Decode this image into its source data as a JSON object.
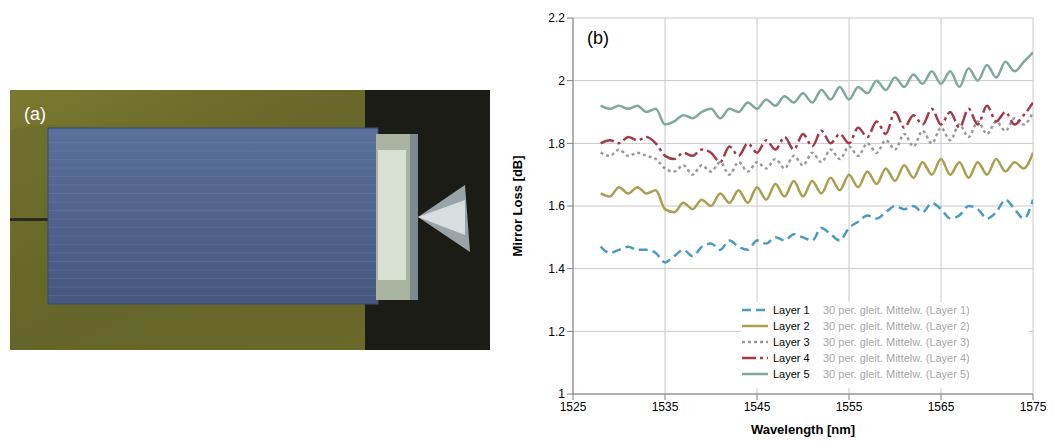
{
  "image": {
    "panel": "(a)"
  },
  "chart_data": {
    "panel": "(b)",
    "type": "line",
    "x_label": "Wavelength [nm]",
    "y_label": "Mirror Loss [dB]",
    "x": [
      1528,
      1529,
      1530,
      1531,
      1532,
      1533,
      1534,
      1535,
      1536,
      1537,
      1538,
      1539,
      1540,
      1541,
      1542,
      1543,
      1544,
      1545,
      1546,
      1547,
      1548,
      1549,
      1550,
      1551,
      1552,
      1553,
      1554,
      1555,
      1556,
      1557,
      1558,
      1559,
      1560,
      1561,
      1562,
      1563,
      1564,
      1565,
      1566,
      1567,
      1568,
      1569,
      1570,
      1571,
      1572,
      1573,
      1574,
      1575
    ],
    "series": [
      {
        "name": "Layer 1",
        "color": "#4a9bbf",
        "line_style": "dashed",
        "values": [
          1.47,
          1.45,
          1.46,
          1.47,
          1.46,
          1.46,
          1.45,
          1.42,
          1.44,
          1.46,
          1.44,
          1.47,
          1.48,
          1.46,
          1.49,
          1.47,
          1.46,
          1.49,
          1.48,
          1.5,
          1.49,
          1.51,
          1.5,
          1.49,
          1.53,
          1.51,
          1.49,
          1.53,
          1.55,
          1.57,
          1.56,
          1.58,
          1.6,
          1.59,
          1.6,
          1.58,
          1.61,
          1.59,
          1.56,
          1.57,
          1.6,
          1.59,
          1.56,
          1.58,
          1.62,
          1.59,
          1.56,
          1.62
        ]
      },
      {
        "name": "Layer 2",
        "color": "#a8a04f",
        "line_style": "solid",
        "values": [
          1.64,
          1.63,
          1.66,
          1.64,
          1.66,
          1.64,
          1.65,
          1.59,
          1.58,
          1.61,
          1.59,
          1.62,
          1.6,
          1.64,
          1.61,
          1.65,
          1.61,
          1.66,
          1.62,
          1.67,
          1.63,
          1.68,
          1.63,
          1.68,
          1.64,
          1.69,
          1.65,
          1.7,
          1.66,
          1.71,
          1.67,
          1.72,
          1.68,
          1.73,
          1.69,
          1.74,
          1.7,
          1.75,
          1.7,
          1.74,
          1.69,
          1.74,
          1.7,
          1.75,
          1.71,
          1.74,
          1.72,
          1.77
        ]
      },
      {
        "name": "Layer 3",
        "color": "#9a9a9a",
        "line_style": "dotted",
        "values": [
          1.77,
          1.76,
          1.78,
          1.76,
          1.77,
          1.76,
          1.75,
          1.72,
          1.71,
          1.73,
          1.7,
          1.73,
          1.71,
          1.74,
          1.7,
          1.74,
          1.71,
          1.74,
          1.72,
          1.75,
          1.72,
          1.76,
          1.73,
          1.77,
          1.74,
          1.78,
          1.75,
          1.79,
          1.76,
          1.8,
          1.77,
          1.81,
          1.78,
          1.83,
          1.79,
          1.84,
          1.8,
          1.85,
          1.81,
          1.86,
          1.82,
          1.87,
          1.83,
          1.87,
          1.84,
          1.88,
          1.86,
          1.9
        ]
      },
      {
        "name": "Layer 4",
        "color": "#a33a4a",
        "line_style": "dashdot",
        "values": [
          1.8,
          1.81,
          1.8,
          1.82,
          1.81,
          1.82,
          1.8,
          1.76,
          1.75,
          1.77,
          1.76,
          1.78,
          1.77,
          1.74,
          1.79,
          1.76,
          1.8,
          1.77,
          1.81,
          1.78,
          1.82,
          1.78,
          1.83,
          1.79,
          1.84,
          1.8,
          1.83,
          1.8,
          1.85,
          1.82,
          1.87,
          1.83,
          1.9,
          1.85,
          1.89,
          1.86,
          1.91,
          1.86,
          1.9,
          1.85,
          1.91,
          1.86,
          1.92,
          1.87,
          1.9,
          1.86,
          1.89,
          1.93
        ]
      },
      {
        "name": "Layer 5",
        "color": "#7fa99a",
        "line_style": "solid",
        "values": [
          1.92,
          1.91,
          1.92,
          1.91,
          1.92,
          1.9,
          1.91,
          1.86,
          1.87,
          1.89,
          1.88,
          1.9,
          1.91,
          1.88,
          1.91,
          1.9,
          1.93,
          1.91,
          1.94,
          1.92,
          1.95,
          1.93,
          1.96,
          1.93,
          1.97,
          1.94,
          1.98,
          1.94,
          1.98,
          1.96,
          2.0,
          1.97,
          2.01,
          1.98,
          2.02,
          1.99,
          2.03,
          1.99,
          2.03,
          1.98,
          2.04,
          2.0,
          2.05,
          2.01,
          2.06,
          2.03,
          2.06,
          2.09
        ]
      }
    ],
    "annotations": [
      "30 per. gleit. Mittelw. (Layer 1)",
      "30 per. gleit. Mittelw. (Layer 2)",
      "30 per. gleit. Mittelw. (Layer 3)",
      "30 per. gleit. Mittelw. (Layer 4)",
      "30 per. gleit. Mittelw. (Layer 5)"
    ],
    "xlim": [
      1525,
      1575
    ],
    "xticks": [
      1525,
      1535,
      1545,
      1555,
      1565,
      1575
    ],
    "ylim": [
      1,
      2.2
    ],
    "yticks": [
      1,
      1.2,
      1.4,
      1.6,
      1.8,
      2,
      2.2
    ],
    "grid": true,
    "legend": "lower right"
  }
}
